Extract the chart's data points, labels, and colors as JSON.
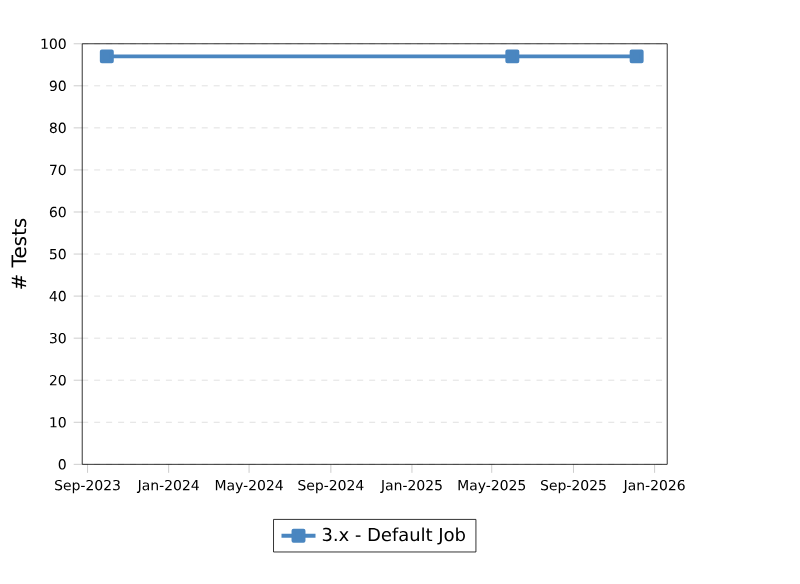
{
  "chart_data": {
    "type": "line",
    "ylabel": "# Tests",
    "x": [
      "2023-09-30",
      "2025-06-01",
      "2025-12-05"
    ],
    "series": [
      {
        "name": "3.x - Default Job",
        "color": "#4a86c0",
        "values": [
          97,
          97,
          97
        ]
      }
    ],
    "xlim": [
      "2023-08-24",
      "2026-01-20"
    ],
    "xticks": [
      {
        "value": "2023-09-01",
        "label": "Sep-2023"
      },
      {
        "value": "2024-01-01",
        "label": "Jan-2024"
      },
      {
        "value": "2024-05-01",
        "label": "May-2024"
      },
      {
        "value": "2024-09-01",
        "label": "Sep-2024"
      },
      {
        "value": "2025-01-01",
        "label": "Jan-2025"
      },
      {
        "value": "2025-05-01",
        "label": "May-2025"
      },
      {
        "value": "2025-09-01",
        "label": "Sep-2025"
      },
      {
        "value": "2026-01-01",
        "label": "Jan-2026"
      }
    ],
    "ylim": [
      0,
      100
    ],
    "yticks": [
      0,
      10,
      20,
      30,
      40,
      50,
      60,
      70,
      80,
      90,
      100
    ],
    "grid": "y",
    "legend": "bottom",
    "marker": "square",
    "line_style": "solid"
  }
}
